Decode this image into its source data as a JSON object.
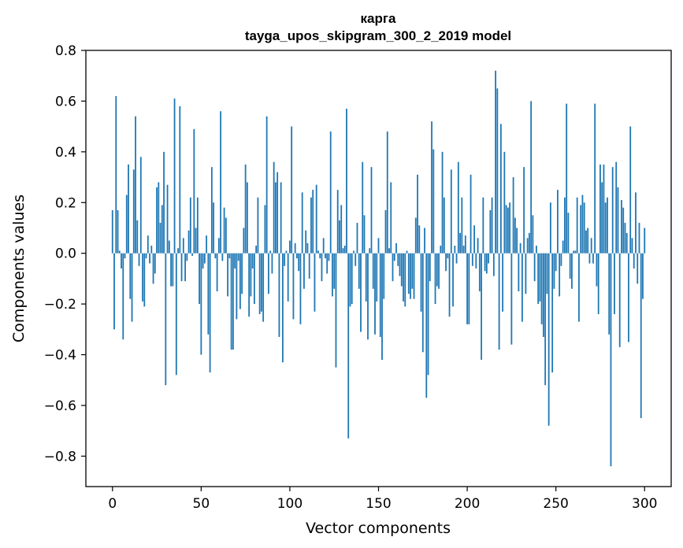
{
  "chart_data": {
    "type": "bar",
    "title": "карга",
    "subtitle": "tayga_upos_skipgram_300_2_2019 model",
    "xlabel": "Vector components",
    "ylabel": "Components values",
    "xlim": [
      -15,
      315
    ],
    "ylim": [
      -0.92,
      0.8
    ],
    "xticks": [
      0,
      50,
      100,
      150,
      200,
      250,
      300
    ],
    "xtick_labels": [
      "0",
      "50",
      "100",
      "150",
      "200",
      "250",
      "300"
    ],
    "yticks": [
      0.8,
      0.6,
      0.4,
      0.2,
      0.0,
      -0.2,
      -0.4,
      -0.6,
      -0.8
    ],
    "ytick_labels": [
      "0.8",
      "0.6",
      "0.4",
      "0.2",
      "0.0",
      "−0.2",
      "−0.4",
      "−0.6",
      "−0.8"
    ],
    "grid": false,
    "color": "#1f77b4",
    "series": [
      {
        "name": "components",
        "values": [
          0.17,
          -0.3,
          0.62,
          0.17,
          0.01,
          -0.06,
          -0.34,
          -0.02,
          0.23,
          0.35,
          -0.18,
          -0.27,
          0.33,
          0.54,
          0.13,
          -0.05,
          0.38,
          -0.19,
          -0.21,
          -0.02,
          0.07,
          -0.04,
          0.03,
          -0.12,
          -0.08,
          0.26,
          0.28,
          0.12,
          0.19,
          0.4,
          -0.52,
          0.27,
          0.05,
          -0.13,
          -0.13,
          0.61,
          -0.48,
          0.02,
          0.58,
          -0.11,
          0.06,
          -0.11,
          -0.03,
          0.09,
          0.22,
          -0.01,
          0.49,
          0.1,
          0.22,
          -0.2,
          -0.4,
          -0.06,
          -0.04,
          0.07,
          -0.32,
          -0.47,
          0.34,
          0.2,
          -0.02,
          -0.15,
          0.06,
          0.56,
          -0.03,
          0.18,
          0.14,
          -0.17,
          -0.02,
          -0.38,
          -0.38,
          -0.06,
          -0.26,
          -0.03,
          -0.22,
          -0.16,
          0.1,
          0.35,
          0.28,
          -0.25,
          -0.17,
          -0.06,
          -0.2,
          0.03,
          0.22,
          -0.24,
          -0.23,
          -0.27,
          0.19,
          0.54,
          -0.16,
          0.01,
          -0.08,
          0.36,
          0.28,
          0.32,
          -0.33,
          0.28,
          -0.43,
          -0.05,
          0.01,
          -0.19,
          0.05,
          0.5,
          -0.26,
          0.04,
          -0.02,
          -0.07,
          -0.28,
          0.24,
          -0.14,
          0.09,
          0.04,
          -0.1,
          0.22,
          0.25,
          -0.23,
          0.27,
          0.01,
          -0.02,
          -0.11,
          0.06,
          -0.02,
          -0.08,
          -0.03,
          0.48,
          -0.17,
          -0.14,
          -0.45,
          0.25,
          0.13,
          0.19,
          0.02,
          0.03,
          0.57,
          -0.73,
          -0.21,
          -0.2,
          0.01,
          -0.05,
          0.12,
          -0.14,
          -0.31,
          0.36,
          0.15,
          -0.19,
          -0.34,
          0.02,
          0.34,
          -0.14,
          -0.32,
          -0.19,
          0.06,
          -0.33,
          -0.42,
          -0.18,
          0.17,
          0.48,
          0.02,
          0.28,
          -0.11,
          -0.03,
          0.04,
          -0.05,
          -0.09,
          -0.13,
          -0.19,
          -0.21,
          0.01,
          -0.16,
          -0.18,
          -0.14,
          -0.18,
          0.14,
          0.31,
          0.11,
          -0.23,
          -0.39,
          0.1,
          -0.57,
          -0.48,
          -0.11,
          0.52,
          0.41,
          -0.2,
          -0.13,
          -0.14,
          0.03,
          0.4,
          0.22,
          -0.07,
          -0.02,
          -0.25,
          0.33,
          -0.21,
          0.03,
          -0.04,
          0.36,
          0.08,
          0.22,
          0.03,
          0.07,
          -0.28,
          -0.28,
          0.31,
          -0.05,
          0.11,
          -0.06,
          0.06,
          -0.15,
          -0.42,
          0.22,
          -0.07,
          -0.08,
          -0.04,
          0.17,
          0.22,
          -0.09,
          0.72,
          0.65,
          -0.38,
          0.51,
          -0.23,
          0.4,
          0.19,
          0.18,
          0.2,
          -0.36,
          0.3,
          0.14,
          0.1,
          -0.15,
          0.04,
          -0.27,
          0.34,
          -0.16,
          0.06,
          0.08,
          0.6,
          0.15,
          -0.11,
          0.03,
          -0.2,
          -0.19,
          -0.28,
          -0.33,
          -0.52,
          -0.16,
          -0.68,
          0.2,
          -0.47,
          -0.14,
          -0.07,
          0.25,
          -0.17,
          -0.05,
          0.05,
          0.22,
          0.59,
          0.16,
          -0.1,
          -0.14,
          0.01,
          0.01,
          0.22,
          -0.27,
          0.19,
          0.23,
          0.2,
          0.09,
          0.1,
          -0.04,
          0.06,
          -0.04,
          0.59,
          -0.13,
          -0.24,
          0.35,
          0.28,
          0.35,
          0.2,
          0.22,
          -0.32,
          -0.84,
          0.34,
          -0.24,
          0.36,
          0.26,
          -0.37,
          0.21,
          0.18,
          0.12,
          0.08,
          -0.35,
          0.5,
          0.06,
          -0.06,
          0.24,
          -0.12,
          0.12,
          -0.65,
          -0.18,
          0.1
        ]
      }
    ]
  }
}
